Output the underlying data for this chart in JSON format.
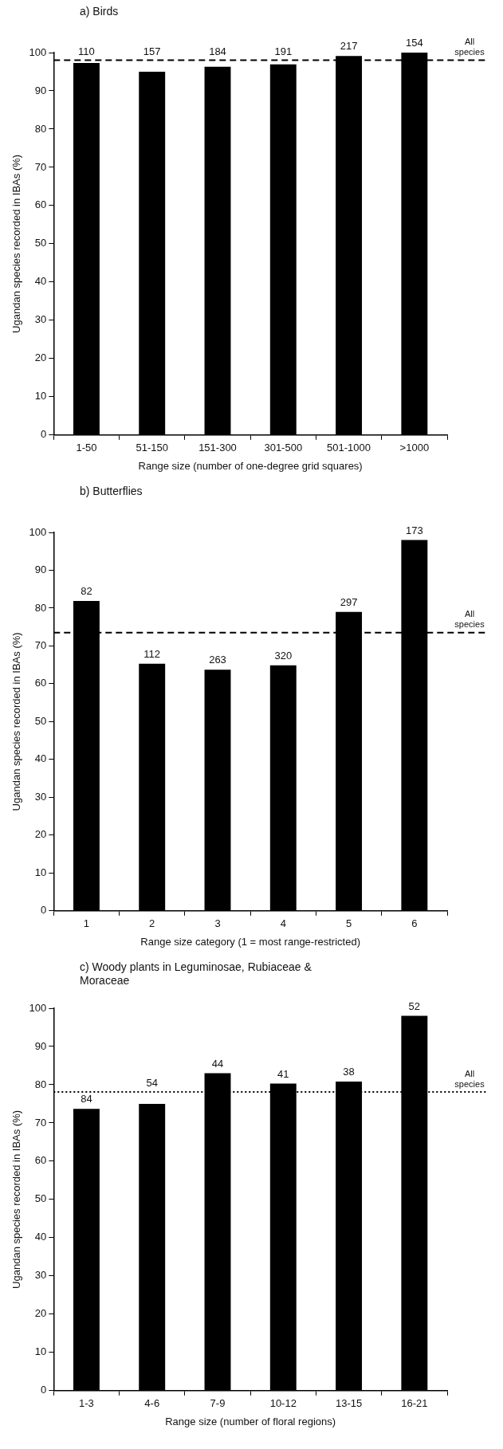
{
  "chart_data": [
    {
      "type": "bar",
      "title": "a) Birds",
      "xlabel": "Range size (number of one-degree grid squares)",
      "ylabel": "Ugandan species recorded in IBAs (%)",
      "categories": [
        "1-50",
        "51-150",
        "151-300",
        "301-500",
        "501-1000",
        ">1000"
      ],
      "values": [
        97.3,
        95,
        96.3,
        96.9,
        99.1,
        100
      ],
      "annotations": [
        {
          "text": "110",
          "x": "1-50",
          "y": 97.3
        },
        {
          "text": "157",
          "x": "51-150",
          "y": 95
        },
        {
          "text": "184",
          "x": "151-300",
          "y": 96.3
        },
        {
          "text": "191",
          "x": "301-500",
          "y": 96.9
        },
        {
          "text": "217",
          "x": "501-1000",
          "y": 99.1
        },
        {
          "text": "154",
          "x": ">1000",
          "y": 100
        }
      ],
      "color": "#000000",
      "ylim": [
        0,
        100
      ],
      "yticks": [
        0,
        10,
        20,
        30,
        40,
        50,
        60,
        70,
        80,
        90,
        100
      ],
      "grid": false,
      "legend": false,
      "ref_lines": [
        {
          "axis": "y",
          "value": 98,
          "label": "All species",
          "line_style": "dashed",
          "color": "#000000"
        }
      ]
    },
    {
      "type": "bar",
      "title": "b) Butterflies",
      "xlabel": "Range size category (1 = most range-restricted)",
      "ylabel": "Ugandan species recorded in IBAs (%)",
      "categories": [
        "1",
        "2",
        "3",
        "4",
        "5",
        "6"
      ],
      "values": [
        81.9,
        65.3,
        63.7,
        64.9,
        79,
        98
      ],
      "annotations": [
        {
          "text": "82",
          "x": "1",
          "y": 81.9
        },
        {
          "text": "112",
          "x": "2",
          "y": 65.3
        },
        {
          "text": "263",
          "x": "3",
          "y": 63.7
        },
        {
          "text": "320",
          "x": "4",
          "y": 64.9
        },
        {
          "text": "297",
          "x": "5",
          "y": 79
        },
        {
          "text": "173",
          "x": "6",
          "y": 98
        }
      ],
      "color": "#000000",
      "ylim": [
        0,
        100
      ],
      "yticks": [
        0,
        10,
        20,
        30,
        40,
        50,
        60,
        70,
        80,
        90,
        100
      ],
      "grid": false,
      "legend": false,
      "ref_lines": [
        {
          "axis": "y",
          "value": 73.5,
          "label": "All species",
          "line_style": "dashed",
          "color": "#000000"
        }
      ]
    },
    {
      "type": "bar",
      "title": "c) Woody plants in Leguminosae, Rubiaceae & Moraceae",
      "xlabel": "Range size (number of floral regions)",
      "ylabel": "Ugandan species recorded in IBAs (%)",
      "categories": [
        "1-3",
        "4-6",
        "7-9",
        "10-12",
        "13-15",
        "16-21"
      ],
      "values": [
        73.7,
        75,
        83,
        80.3,
        80.8,
        98
      ],
      "annotations": [
        {
          "text": "84",
          "x": "1-3",
          "y": 73.7
        },
        {
          "text": "54",
          "x": "4-6",
          "y": 75
        },
        {
          "text": "44",
          "x": "7-9",
          "y": 83
        },
        {
          "text": "41",
          "x": "10-12",
          "y": 80.3
        },
        {
          "text": "38",
          "x": "13-15",
          "y": 80.8
        },
        {
          "text": "52",
          "x": "16-21",
          "y": 98
        }
      ],
      "color": "#000000",
      "ylim": [
        0,
        100
      ],
      "yticks": [
        0,
        10,
        20,
        30,
        40,
        50,
        60,
        70,
        80,
        90,
        100
      ],
      "grid": false,
      "legend": false,
      "ref_lines": [
        {
          "axis": "y",
          "value": 78.1,
          "label": "All species",
          "line_style": "dotted",
          "color": "#000000"
        }
      ]
    }
  ]
}
